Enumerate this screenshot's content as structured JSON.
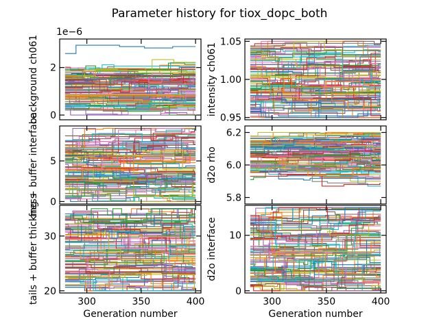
{
  "figure": {
    "title": "Parameter history for tiox_dopc_both"
  },
  "palette": [
    "#1f77b4",
    "#ff7f0e",
    "#2ca02c",
    "#d62728",
    "#9467bd",
    "#8c564b",
    "#e377c2",
    "#7f7f7f",
    "#bcbd22",
    "#17becf"
  ],
  "chart_data": [
    {
      "type": "line",
      "ylabel": "background ch061",
      "xlabel": "",
      "offset_text": "1e−6",
      "xlim": [
        275,
        405
      ],
      "ylim": [
        -0.2,
        3.2
      ],
      "xticks": [
        300,
        350,
        400
      ],
      "xticklabels": [],
      "yticks": [
        0,
        2
      ],
      "yticklabels": [
        "0",
        "2"
      ],
      "series_count": 100,
      "series_value_range": [
        0.0,
        3.0
      ],
      "series_typical_range": [
        0.2,
        2.0
      ],
      "generations": [
        280,
        400
      ]
    },
    {
      "type": "line",
      "ylabel": "intensity ch061",
      "xlabel": "",
      "offset_text": "",
      "xlim": [
        275,
        405
      ],
      "ylim": [
        0.947,
        1.053
      ],
      "xticks": [
        300,
        350,
        400
      ],
      "xticklabels": [],
      "yticks": [
        0.95,
        1.0,
        1.05
      ],
      "yticklabels": [
        "0.95",
        "1.00",
        "1.05"
      ],
      "series_count": 100,
      "series_value_range": [
        0.95,
        1.05
      ],
      "series_typical_range": [
        0.955,
        1.045
      ],
      "generations": [
        280,
        400
      ]
    },
    {
      "type": "line",
      "ylabel": "fng + buffer interface",
      "xlabel": "",
      "offset_text": "",
      "xlim": [
        275,
        405
      ],
      "ylim": [
        -0.3,
        9.3
      ],
      "xticks": [
        300,
        350,
        400
      ],
      "xticklabels": [],
      "yticks": [
        0,
        5
      ],
      "yticklabels": [
        "0",
        "5"
      ],
      "series_count": 100,
      "series_value_range": [
        0.0,
        9.0
      ],
      "series_typical_range": [
        0.3,
        8.0
      ],
      "generations": [
        280,
        400
      ]
    },
    {
      "type": "line",
      "ylabel": "d2o rho",
      "xlabel": "",
      "offset_text": "",
      "xlim": [
        275,
        405
      ],
      "ylim": [
        5.76,
        6.24
      ],
      "xticks": [
        300,
        350,
        400
      ],
      "xticklabels": [],
      "yticks": [
        5.8,
        6.0,
        6.2
      ],
      "yticklabels": [
        "5.8",
        "6.0",
        "6.2"
      ],
      "series_count": 100,
      "series_value_range": [
        5.87,
        6.2
      ],
      "series_typical_range": [
        5.95,
        6.17
      ],
      "generations": [
        280,
        400
      ]
    },
    {
      "type": "line",
      "ylabel": "tails + buffer thickness",
      "xlabel": "Generation number",
      "offset_text": "",
      "xlim": [
        275,
        405
      ],
      "ylim": [
        19.6,
        35.6
      ],
      "xticks": [
        300,
        350,
        400
      ],
      "xticklabels": [
        "300",
        "350",
        "400"
      ],
      "yticks": [
        20,
        30
      ],
      "yticklabels": [
        "20",
        "30"
      ],
      "series_count": 100,
      "series_value_range": [
        20.0,
        35.0
      ],
      "series_typical_range": [
        20.5,
        34.0
      ],
      "generations": [
        280,
        400
      ]
    },
    {
      "type": "line",
      "ylabel": "d2o interface",
      "xlabel": "Generation number",
      "offset_text": "",
      "xlim": [
        275,
        405
      ],
      "ylim": [
        -0.4,
        15.4
      ],
      "xticks": [
        300,
        350,
        400
      ],
      "xticklabels": [
        "300",
        "350",
        "400"
      ],
      "yticks": [
        0,
        10
      ],
      "yticklabels": [
        "0",
        "10"
      ],
      "series_count": 100,
      "series_value_range": [
        0.0,
        15.0
      ],
      "series_typical_range": [
        0.5,
        14.0
      ],
      "generations": [
        280,
        400
      ]
    }
  ]
}
